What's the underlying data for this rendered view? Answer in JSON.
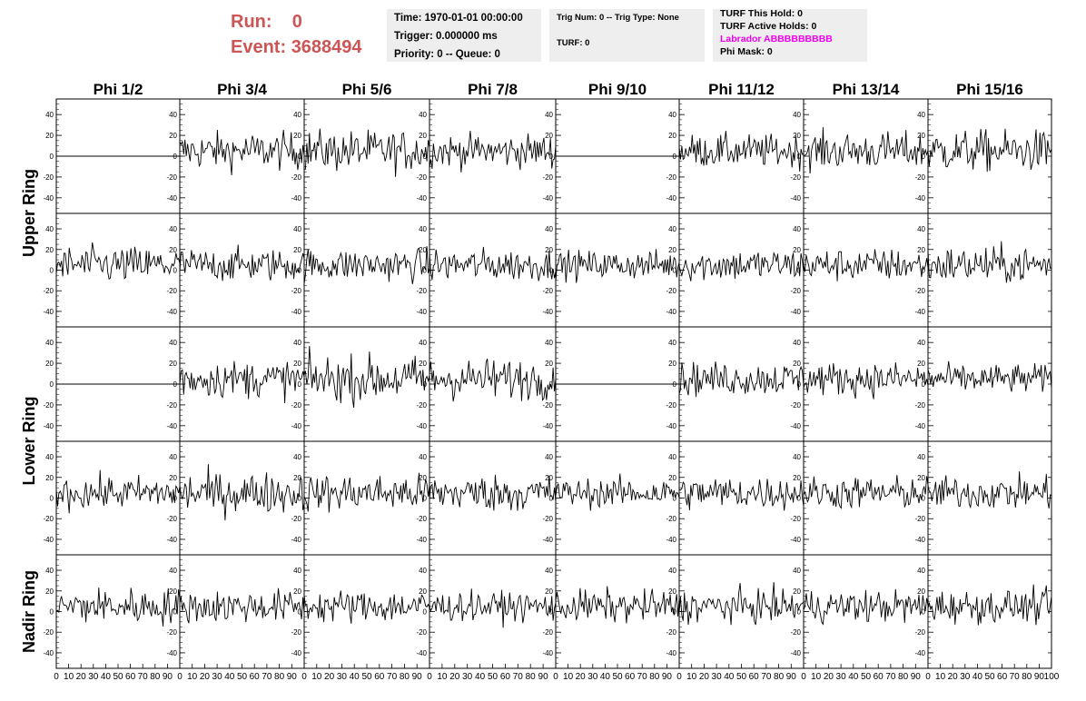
{
  "header": {
    "run_label": "Run:",
    "run_value": "0",
    "event_label": "Event:",
    "event_value": "3688494"
  },
  "time_panel": {
    "time": "Time: 1970-01-01 00:00:00",
    "trigger": "Trigger: 0.000000 ms",
    "priority": "Priority: 0 -- Queue: 0"
  },
  "trig_panel": {
    "trig": "Trig Num: 0 -- Trig Type: None",
    "turf": "TURF: 0"
  },
  "turf_panel": {
    "this_hold": "TURF This Hold: 0",
    "active_holds": "TURF Active Holds: 0",
    "labrador": "Labrador ABBBBBBBBB",
    "phi_mask": "Phi Mask: 0"
  },
  "colors": {
    "run_text": "#cc5555",
    "labrador_text": "#ee00ee",
    "panel_bg": "#eeeeee",
    "trace": "#000000"
  },
  "chart_data": {
    "type": "line",
    "columns": [
      "Phi 1/2",
      "Phi 3/4",
      "Phi 5/6",
      "Phi 7/8",
      "Phi 9/10",
      "Phi 11/12",
      "Phi 13/14",
      "Phi 15/16"
    ],
    "row_labels": [
      {
        "text": "Upper Ring",
        "rows": [
          0,
          1
        ]
      },
      {
        "text": "Lower Ring",
        "rows": [
          2,
          3
        ]
      },
      {
        "text": "Nadir Ring",
        "rows": [
          4
        ]
      }
    ],
    "xlim": [
      0,
      100
    ],
    "ylim": [
      -55,
      55
    ],
    "yticks": [
      -40,
      -20,
      0,
      20,
      40
    ],
    "xticks_labels": [
      "0",
      "10",
      "20",
      "30",
      "40",
      "50",
      "60",
      "70",
      "80",
      "90",
      "100"
    ],
    "samples": 96,
    "grid": false,
    "legend": "none",
    "flat_cells": [
      [
        0,
        0
      ],
      [
        0,
        4
      ],
      [
        2,
        0
      ],
      [
        2,
        4
      ]
    ],
    "amplitude_rows": [
      [
        0,
        9,
        10,
        8,
        0,
        8,
        9,
        10
      ],
      [
        9,
        8,
        8,
        8,
        7,
        8,
        8,
        9
      ],
      [
        0,
        9,
        11,
        10,
        0,
        8,
        8,
        7
      ],
      [
        8,
        10,
        9,
        9,
        7,
        8,
        8,
        8
      ],
      [
        9,
        8,
        8,
        7,
        8,
        8,
        8,
        8
      ]
    ]
  }
}
